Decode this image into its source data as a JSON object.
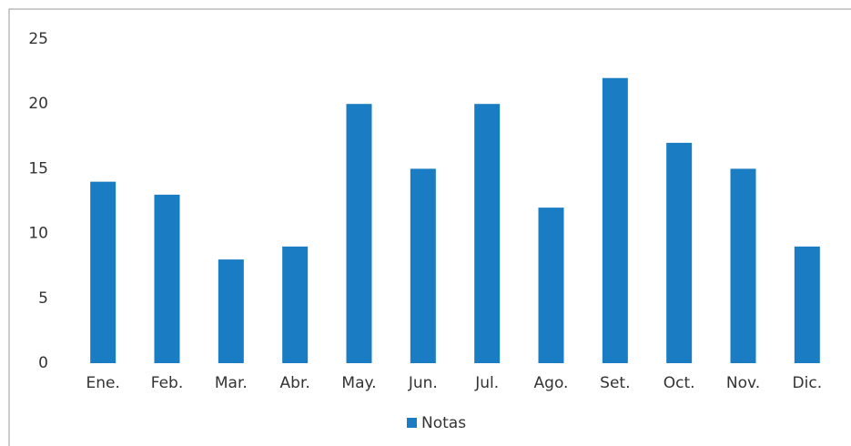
{
  "chart_data": {
    "type": "bar",
    "categories": [
      "Ene.",
      "Feb.",
      "Mar.",
      "Abr.",
      "May.",
      "Jun.",
      "Jul.",
      "Ago.",
      "Set.",
      "Oct.",
      "Nov.",
      "Dic."
    ],
    "series": [
      {
        "name": "Notas",
        "color": "#1a7dc4",
        "values": [
          14,
          13,
          8,
          9,
          20,
          15,
          20,
          12,
          22,
          17,
          15,
          9
        ]
      }
    ],
    "ylim": [
      0,
      25
    ],
    "yticks": [
      0,
      5,
      10,
      15,
      20,
      25
    ],
    "grid": false,
    "legend": "bottom"
  }
}
